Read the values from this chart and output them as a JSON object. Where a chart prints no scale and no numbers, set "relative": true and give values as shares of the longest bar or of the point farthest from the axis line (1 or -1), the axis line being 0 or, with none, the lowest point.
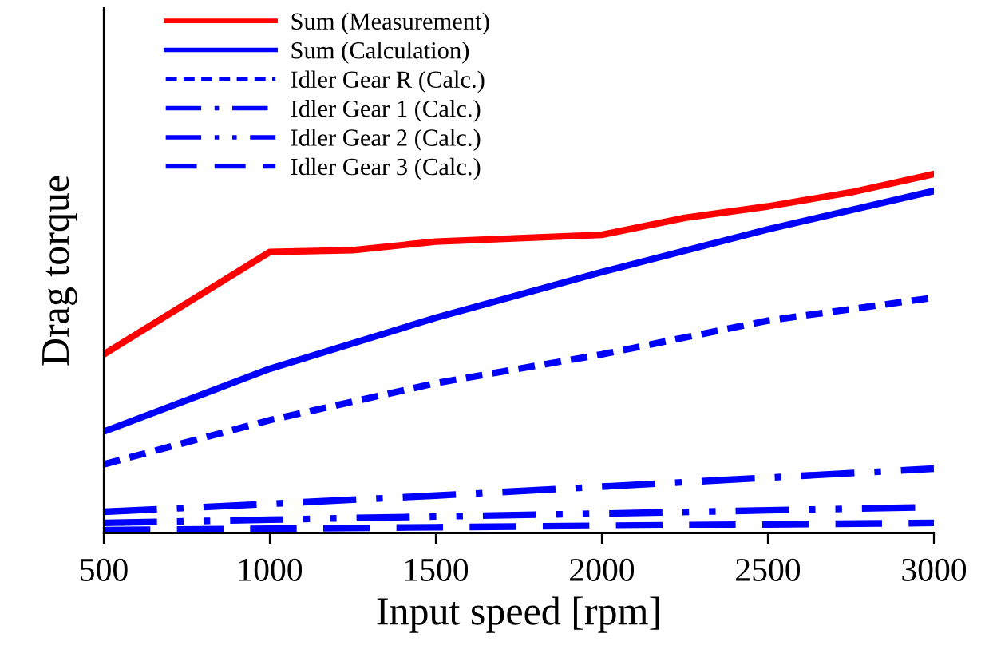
{
  "chart_data": {
    "type": "line",
    "relative": true,
    "xlabel": "Input speed [rpm]",
    "ylabel": "Drag torque",
    "xlim": [
      500,
      3000
    ],
    "xticks": [
      500,
      1000,
      1500,
      2000,
      2500,
      3000
    ],
    "legend": "top left",
    "grid": false,
    "series": [
      {
        "name": "Sum (Measurement)",
        "color": "#ff0000",
        "line_style": "solid",
        "x": [
          500,
          1000,
          1250,
          1500,
          2000,
          2250,
          2500,
          2750,
          3000
        ],
        "values": [
          0.498,
          0.783,
          0.788,
          0.812,
          0.831,
          0.878,
          0.91,
          0.949,
          1.0
        ]
      },
      {
        "name": "Sum (Calculation)",
        "color": "#0000ff",
        "line_style": "solid",
        "x": [
          500,
          1000,
          1500,
          2000,
          2500,
          3000
        ],
        "values": [
          0.283,
          0.458,
          0.6,
          0.727,
          0.846,
          0.953
        ]
      },
      {
        "name": "Idler Gear R (Calc.)",
        "color": "#0000ff",
        "line_style": "dashed",
        "x": [
          500,
          1000,
          1500,
          2000,
          2500,
          3000
        ],
        "values": [
          0.192,
          0.315,
          0.418,
          0.498,
          0.592,
          0.656
        ]
      },
      {
        "name": "Idler Gear 1 (Calc.)",
        "color": "#0000ff",
        "line_style": "dashdot",
        "x": [
          500,
          1000,
          1500,
          2000,
          2500,
          3000
        ],
        "values": [
          0.06,
          0.082,
          0.105,
          0.13,
          0.155,
          0.18
        ]
      },
      {
        "name": "Idler Gear 2 (Calc.)",
        "color": "#0000ff",
        "line_style": "dashdotdot",
        "x": [
          500,
          1000,
          1500,
          2000,
          2500,
          3000
        ],
        "values": [
          0.029,
          0.038,
          0.047,
          0.055,
          0.064,
          0.073
        ]
      },
      {
        "name": "Idler Gear 3 (Calc.)",
        "color": "#0000ff",
        "line_style": "longdash",
        "x": [
          500,
          1000,
          1500,
          2000,
          2500,
          3000
        ],
        "values": [
          0.009,
          0.013,
          0.017,
          0.021,
          0.025,
          0.029
        ]
      }
    ]
  }
}
